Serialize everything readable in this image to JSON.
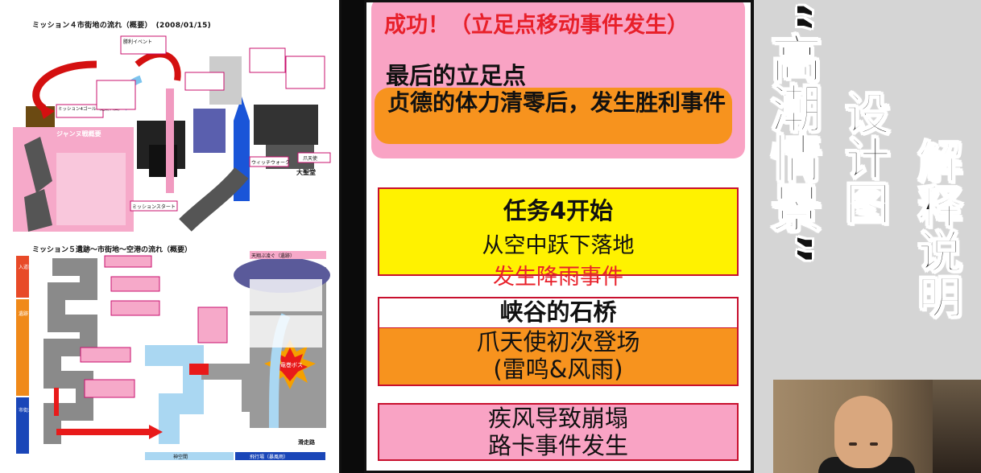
{
  "doc": {
    "title_top": "ミッション４市街地の流れ（概要）　(2008/01/15)",
    "title_bottom": "ミッション５遺跡～市街地～空港の流れ（概要）",
    "labels_top": {
      "l1": "勝利イベント",
      "l2": "ミッション4ゴール（遺跡入口）",
      "l3": "ジャンヌ戦概要",
      "l4": "大聖堂",
      "l5": "ミッションスタート",
      "l6": "ウィッチウォーク",
      "l7": "爪天使"
    },
    "labels_bottom": {
      "l1": "入道口",
      "l2": "遺跡ゾーン",
      "l3": "市街地ゾーン",
      "l4": "竜巻ボス",
      "l5": "天翔ぶ凌ぐ（遺跡）",
      "l6": "神空間",
      "l7": "飛行場（暴風雨）",
      "l8": "滑走路"
    }
  },
  "panel": {
    "success": "成功！（立足点移动事件发生）",
    "last_title": "最后的立足点",
    "orange_text": "贞德的体力清零后，发生胜利事件",
    "box1": {
      "line1": "任务4开始",
      "line2": "从空中跃下落地",
      "line3": "发生降雨事件"
    },
    "box2": {
      "header": "峡谷的石桥",
      "body": "爪天使初次登场\n(雷鸣&风雨)"
    },
    "box3": "疾风导致崩塌\n路卡事件发生"
  },
  "side": {
    "t1": "“高潮情景”",
    "t2": "设计图",
    "t3": "解释说明"
  },
  "colors": {
    "pink": "#f9a3c4",
    "orange": "#f7931e",
    "yellow": "#fff200",
    "red": "#e8202a"
  }
}
